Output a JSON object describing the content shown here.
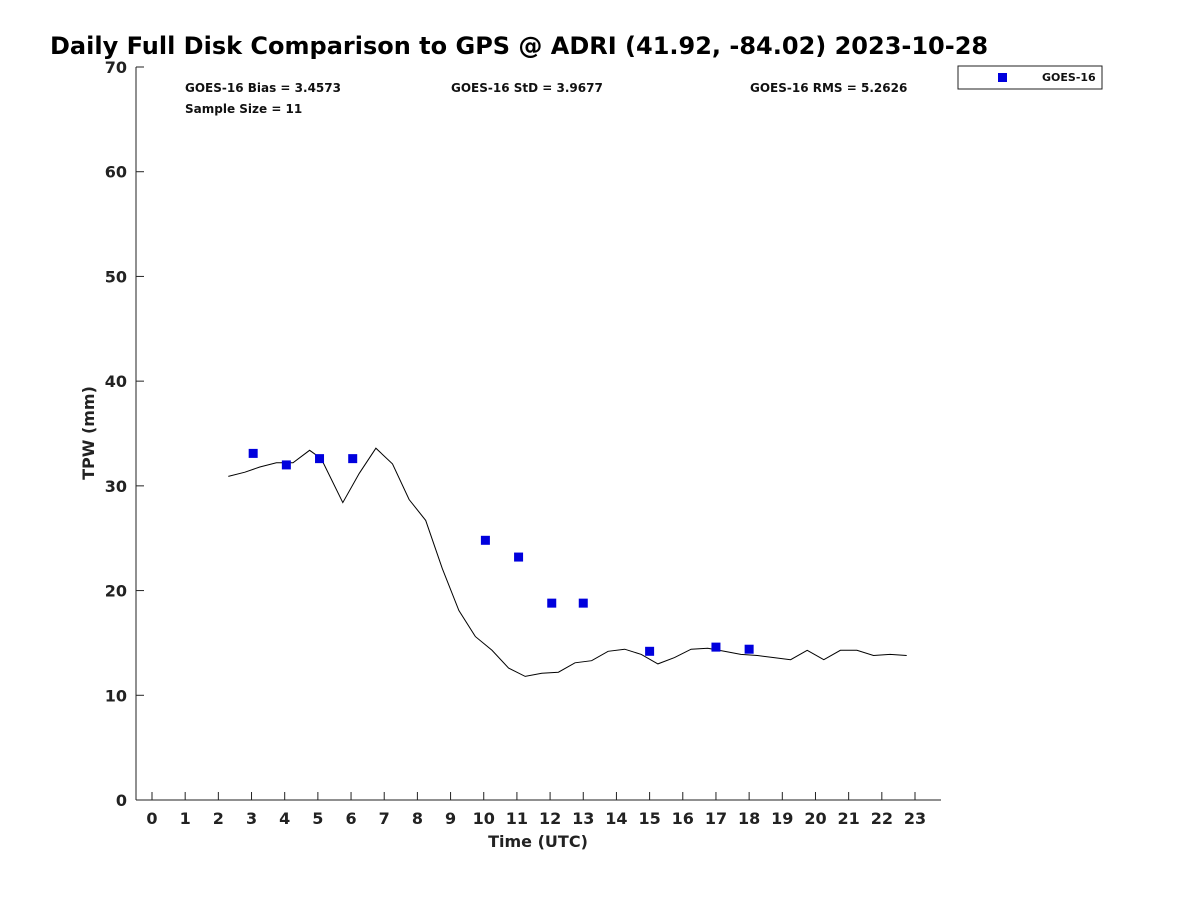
{
  "chart_data": {
    "type": "scatter",
    "title": "Daily Full Disk Comparison to GPS @ ADRI (41.92, -84.02) 2023-10-28",
    "xlabel": "Time (UTC)",
    "ylabel": "TPW (mm)",
    "xlim": [
      -0.5,
      23.8
    ],
    "ylim": [
      0,
      70
    ],
    "x_ticks": [
      0,
      1,
      2,
      3,
      4,
      5,
      6,
      7,
      8,
      9,
      10,
      11,
      12,
      13,
      14,
      15,
      16,
      17,
      18,
      19,
      20,
      21,
      22,
      23
    ],
    "y_ticks": [
      0,
      10,
      20,
      30,
      40,
      50,
      60,
      70
    ],
    "grid": false,
    "legend_position": "top-right outside",
    "legend": [
      "GOES-16"
    ],
    "stats": [
      "GOES-16 Bias = 3.4573",
      "GOES-16 StD = 3.9677",
      "GOES-16 RMS = 5.2626",
      "Sample Size = 11"
    ],
    "series": [
      {
        "name": "GOES-16",
        "kind": "scatter",
        "marker": "square",
        "color": "#0000dd",
        "x": [
          3.05,
          4.05,
          5.05,
          6.05,
          10.05,
          11.05,
          12.05,
          13.0,
          15.0,
          17.0,
          18.0
        ],
        "y": [
          33.1,
          32.0,
          32.6,
          32.6,
          24.8,
          23.2,
          18.8,
          18.8,
          14.2,
          14.6,
          14.4
        ]
      },
      {
        "kind": "line",
        "color": "#000000",
        "x": [
          2.3,
          2.8,
          3.25,
          3.75,
          4.25,
          4.75,
          5.1,
          5.75,
          6.25,
          6.75,
          7.25,
          7.75,
          8.25,
          8.75,
          9.25,
          9.75,
          10.25,
          10.75,
          11.25,
          11.75,
          12.25,
          12.75,
          13.25,
          13.75,
          14.25,
          14.75,
          15.25,
          15.75,
          16.25,
          16.75,
          17.25,
          17.75,
          18.25,
          18.75,
          19.25,
          19.75,
          20.25,
          20.75,
          21.25,
          21.75,
          22.25,
          22.75
        ],
        "y": [
          30.9,
          31.3,
          31.8,
          32.2,
          32.2,
          33.4,
          32.6,
          28.4,
          31.2,
          33.6,
          32.1,
          28.7,
          26.7,
          22.1,
          18.1,
          15.6,
          14.3,
          12.6,
          11.8,
          12.1,
          12.2,
          13.1,
          13.3,
          14.2,
          14.4,
          13.9,
          13.0,
          13.6,
          14.4,
          14.5,
          14.2,
          13.9,
          13.8,
          13.6,
          13.4,
          14.3,
          13.4,
          14.3,
          14.3,
          13.8,
          13.9,
          13.8
        ]
      }
    ]
  }
}
